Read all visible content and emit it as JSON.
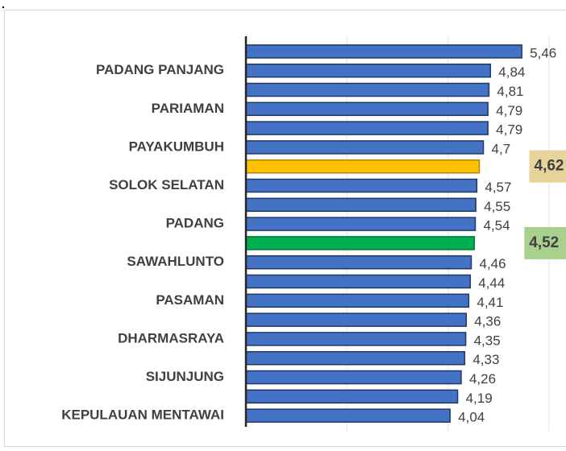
{
  "chart_data": {
    "type": "barh",
    "categories": [
      null,
      "PADANG PANJANG",
      null,
      "PARIAMAN",
      null,
      "PAYAKUMBUH",
      null,
      "SOLOK SELATAN",
      null,
      "PADANG",
      null,
      "SAWAHLUNTO",
      null,
      "PASAMAN",
      null,
      "DHARMASRAYA",
      null,
      "SIJUNJUNG",
      null,
      "KEPULAUAN MENTAWAI"
    ],
    "values": [
      5.46,
      4.84,
      4.81,
      4.79,
      4.79,
      4.7,
      4.62,
      4.57,
      4.55,
      4.54,
      4.52,
      4.46,
      4.44,
      4.41,
      4.36,
      4.35,
      4.33,
      4.26,
      4.19,
      4.04
    ],
    "value_labels": [
      "5,46",
      "4,84",
      "4,81",
      "4,79",
      "4,79",
      "4,7",
      "4,62",
      "4,57",
      "4,55",
      "4,54",
      "4,52",
      "4,46",
      "4,44",
      "4,41",
      "4,36",
      "4,35",
      "4,33",
      "4,26",
      "4,19",
      "4,04"
    ],
    "colors": [
      "#4472c4",
      "#4472c4",
      "#4472c4",
      "#4472c4",
      "#4472c4",
      "#4472c4",
      "#ffc000",
      "#4472c4",
      "#4472c4",
      "#4472c4",
      "#00b050",
      "#4472c4",
      "#4472c4",
      "#4472c4",
      "#4472c4",
      "#4472c4",
      "#4472c4",
      "#4472c4",
      "#4472c4",
      "#4472c4"
    ],
    "highlight_label_colors": {
      "6": "#e6d49b",
      "10": "#a9d18e"
    },
    "xlim": [
      0,
      6
    ],
    "xticks": [
      0,
      2,
      4,
      6
    ],
    "grid": true
  }
}
